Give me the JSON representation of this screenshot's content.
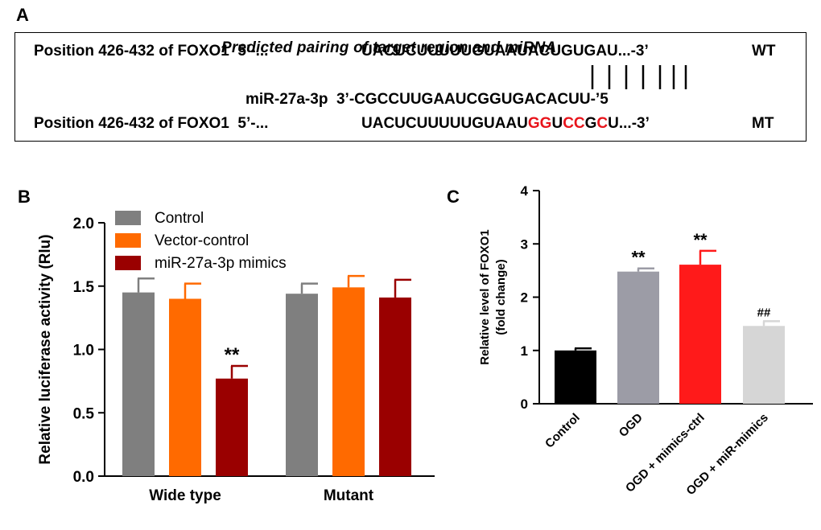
{
  "panel_a": {
    "letter": "A",
    "title": "Predicted  pairing of target region and miRNA",
    "wt_label": "Position 426-432 of FOXO1  5’-...",
    "wt_seq": "UACUCUUUUUGUAAUACUGUGAU...-3’",
    "wt_tag": "WT",
    "mirna_label": "miR-27a-3p  3’-CGCCUUGAAUCGGUGACACUU-’5",
    "mt_label": "Position 426-432 of FOXO1  5’-...",
    "mt_seq_segments": [
      {
        "text": "UACUCUUUUUGUAAU",
        "mut": false
      },
      {
        "text": "GG",
        "mut": true
      },
      {
        "text": "U",
        "mut": false
      },
      {
        "text": "CC",
        "mut": true
      },
      {
        "text": "G",
        "mut": false
      },
      {
        "text": "C",
        "mut": true
      },
      {
        "text": "U...-3’",
        "mut": false
      }
    ],
    "mt_tag": "MT"
  },
  "chart_data": [
    {
      "panel": "B",
      "type": "bar",
      "ylabel": "Relative luciferase activity (Rlu)",
      "categories": [
        "Wide type",
        "Mutant"
      ],
      "ylim": [
        0,
        2.0
      ],
      "yticks": [
        "0.0",
        "0.5",
        "1.0",
        "1.5",
        "2.0"
      ],
      "legend_position": "top-left",
      "series": [
        {
          "name": "Control",
          "color": "#7f7f7f",
          "values": [
            1.45,
            1.44
          ],
          "errors": [
            0.11,
            0.08
          ],
          "annotations": [
            "",
            ""
          ]
        },
        {
          "name": "Vector-control",
          "color": "#ff6a00",
          "values": [
            1.4,
            1.49
          ],
          "errors": [
            0.12,
            0.09
          ],
          "annotations": [
            "",
            ""
          ]
        },
        {
          "name": "miR-27a-3p mimics",
          "color": "#9a0000",
          "values": [
            0.77,
            1.41
          ],
          "errors": [
            0.1,
            0.14
          ],
          "annotations": [
            "**",
            ""
          ]
        }
      ]
    },
    {
      "panel": "C",
      "type": "bar",
      "ylabel": "Relative level of FOXO1 (fold change)",
      "ylabel_lines": [
        "Relative level of FOXO1",
        "(fold change)"
      ],
      "categories": [
        "Control",
        "OGD",
        "OGD + mimics-ctrl",
        "OGD + miR-mimics"
      ],
      "values": [
        1.0,
        2.48,
        2.61,
        1.46
      ],
      "errors": [
        0.04,
        0.06,
        0.26,
        0.09
      ],
      "colors": [
        "#000000",
        "#9c9ca6",
        "#ff1a1a",
        "#d6d6d6"
      ],
      "annotations": [
        "",
        "**",
        "**",
        "##"
      ],
      "ylim": [
        0,
        4
      ],
      "yticks": [
        "0",
        "1",
        "2",
        "3",
        "4"
      ]
    }
  ]
}
